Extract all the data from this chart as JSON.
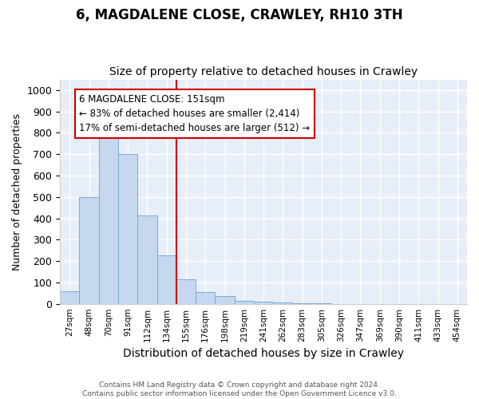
{
  "title1": "6, MAGDALENE CLOSE, CRAWLEY, RH10 3TH",
  "title2": "Size of property relative to detached houses in Crawley",
  "xlabel": "Distribution of detached houses by size in Crawley",
  "ylabel": "Number of detached properties",
  "bin_labels": [
    "27sqm",
    "48sqm",
    "70sqm",
    "91sqm",
    "112sqm",
    "134sqm",
    "155sqm",
    "176sqm",
    "198sqm",
    "219sqm",
    "241sqm",
    "262sqm",
    "283sqm",
    "305sqm",
    "326sqm",
    "347sqm",
    "369sqm",
    "390sqm",
    "411sqm",
    "433sqm",
    "454sqm"
  ],
  "bin_values": [
    57,
    500,
    810,
    700,
    415,
    225,
    115,
    55,
    35,
    15,
    10,
    5,
    2,
    1,
    0,
    0,
    0,
    0,
    0,
    0,
    0
  ],
  "bar_color": "#c5d8f0",
  "bar_edge_color": "#7aaad4",
  "vline_x": 6,
  "vline_color": "#cc0000",
  "annotation_text": "6 MAGDALENE CLOSE: 151sqm\n← 83% of detached houses are smaller (2,414)\n17% of semi-detached houses are larger (512) →",
  "annotation_box_color": "#ffffff",
  "annotation_box_edge_color": "#cc0000",
  "ylim": [
    0,
    1050
  ],
  "yticks": [
    0,
    100,
    200,
    300,
    400,
    500,
    600,
    700,
    800,
    900,
    1000
  ],
  "fig_bg_color": "#ffffff",
  "plot_bg_color": "#e8eef8",
  "grid_color": "#ffffff",
  "footer_text": "Contains HM Land Registry data © Crown copyright and database right 2024.\nContains public sector information licensed under the Open Government Licence v3.0.",
  "title1_fontsize": 12,
  "title2_fontsize": 10,
  "ylabel_fontsize": 9,
  "xlabel_fontsize": 10
}
